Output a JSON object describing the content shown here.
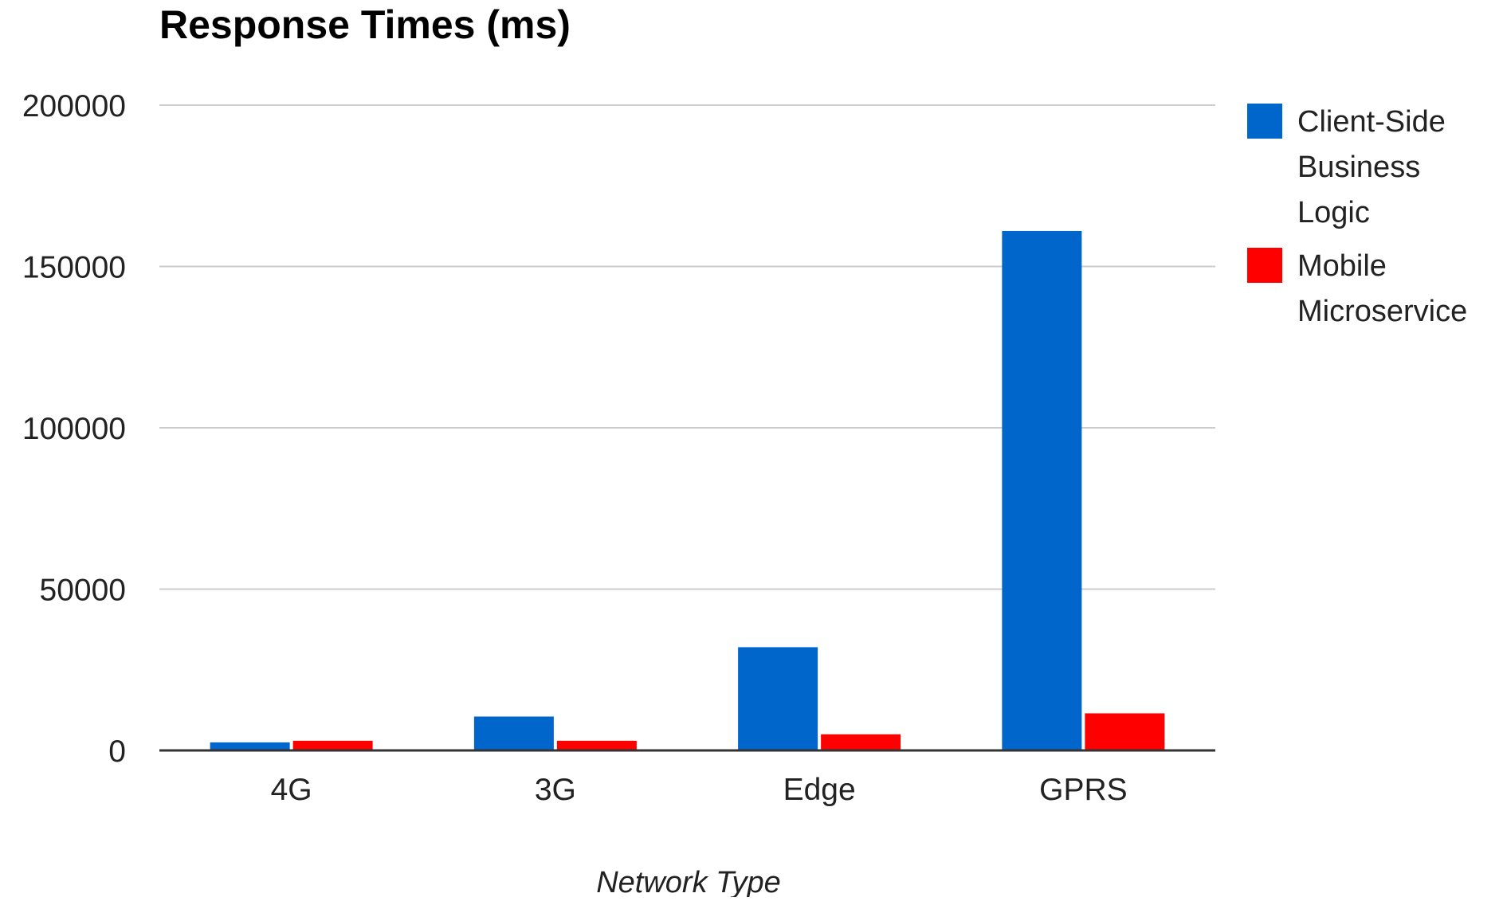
{
  "chart_data": {
    "type": "bar",
    "title": "Response Times (ms)",
    "xlabel": "Network Type",
    "ylabel": "",
    "categories": [
      "4G",
      "3G",
      "Edge",
      "GPRS"
    ],
    "series": [
      {
        "name": "Client-Side Business Logic",
        "color": "#0066cc",
        "values": [
          2500,
          10500,
          32000,
          161000
        ]
      },
      {
        "name": "Mobile Microservice",
        "color": "#ff0000",
        "values": [
          3000,
          3000,
          5000,
          11500
        ]
      }
    ],
    "ylim": [
      0,
      200000
    ],
    "yticks": [
      "0",
      "50000",
      "100000",
      "150000",
      "200000"
    ],
    "grid": true,
    "legend_position": "right",
    "legend_lines": [
      [
        "Client-Side",
        "Business",
        "Logic"
      ],
      [
        "Mobile",
        "Microservice"
      ]
    ]
  }
}
